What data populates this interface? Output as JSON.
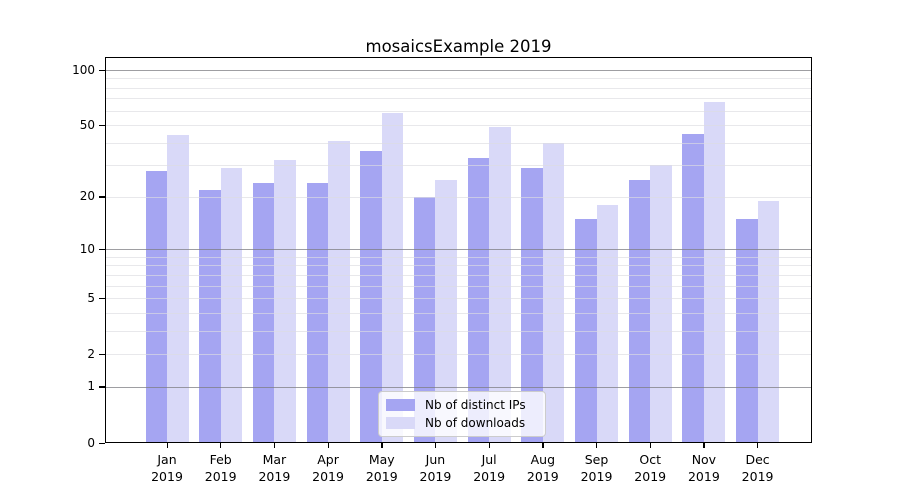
{
  "figure": {
    "title": "mosaicsExample 2019"
  },
  "colors": {
    "background": "#ffffff",
    "axis": "#000000",
    "grid_minor": "#ebebeb",
    "grid_major": "#aaaaaa",
    "bar_distinct_ips": "#a5a5f2",
    "bar_downloads": "#d9d9f8",
    "legend_border": "#cccccc"
  },
  "chart_data": {
    "type": "bar",
    "title": "mosaicsExample 2019",
    "xlabel": "",
    "ylabel": "",
    "x_categories": [
      "Jan 2019",
      "Feb 2019",
      "Mar 2019",
      "Apr 2019",
      "May 2019",
      "Jun 2019",
      "Jul 2019",
      "Aug 2019",
      "Sep 2019",
      "Oct 2019",
      "Nov 2019",
      "Dec 2019"
    ],
    "series": [
      {
        "name": "Nb of distinct IPs",
        "color": "#a5a5f2",
        "values": [
          28,
          22,
          24,
          24,
          36,
          20,
          33,
          29,
          15,
          25,
          45,
          15
        ]
      },
      {
        "name": "Nb of downloads",
        "color": "#d9d9f8",
        "values": [
          44,
          29,
          32,
          41,
          58,
          25,
          49,
          40,
          18,
          30,
          67,
          19
        ]
      }
    ],
    "y_scale": "log1p",
    "y_ticks_labeled": [
      0,
      1,
      2,
      5,
      10,
      20,
      50,
      100
    ],
    "y_gridlines_minor": [
      2,
      3,
      4,
      5,
      6,
      7,
      8,
      9,
      20,
      30,
      40,
      50,
      60,
      70,
      80,
      90
    ],
    "y_gridlines_major": [
      1,
      10,
      100
    ],
    "ylim": [
      0,
      115
    ],
    "grid": true,
    "legend_position": "lower center inside"
  }
}
